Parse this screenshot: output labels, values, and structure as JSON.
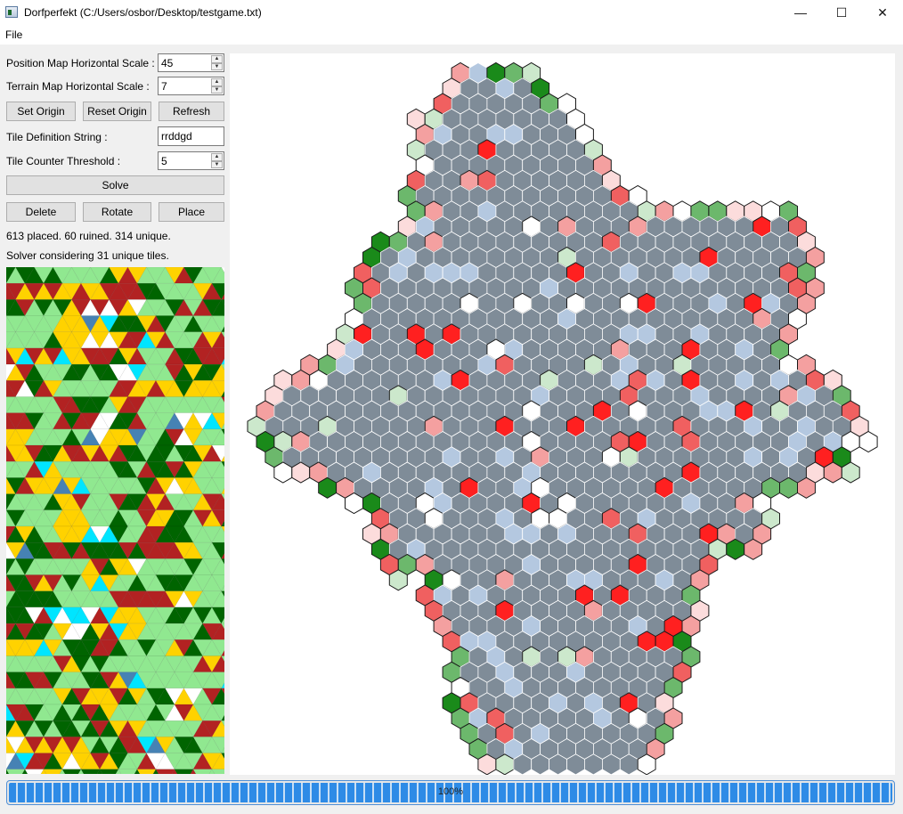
{
  "window": {
    "title": "Dorfperfekt (C:/Users/osbor/Desktop/testgame.txt)",
    "minimize": "—",
    "maximize": "☐",
    "close": "✕"
  },
  "menu": {
    "file": "File"
  },
  "controls": {
    "position_scale_label": "Position Map Horizontal Scale :",
    "position_scale_value": "45",
    "terrain_scale_label": "Terrain Map Horizontal Scale :",
    "terrain_scale_value": "7",
    "set_origin": "Set Origin",
    "reset_origin": "Reset Origin",
    "refresh": "Refresh",
    "tile_def_label": "Tile Definition String :",
    "tile_def_value": "rrddgd",
    "threshold_label": "Tile Counter Threshold :",
    "threshold_value": "5",
    "solve": "Solve",
    "delete": "Delete",
    "rotate": "Rotate",
    "place": "Place"
  },
  "status": {
    "summary": "613 placed. 60 ruined. 314 unique.",
    "solver": "Solver considering 31 unique tiles."
  },
  "progress": {
    "value": 100,
    "label": "100%"
  },
  "colors": {
    "grey": "#7f8c98",
    "light_blue": "#b4c8e0",
    "white": "#ffffff",
    "red": "#ff2020",
    "red_mid": "#f06060",
    "pink": "#f4a0a0",
    "pale_pink": "#fcdcdc",
    "green_dark": "#1a8a1a",
    "green_mid": "#6cb86c",
    "green_pale": "#cce8cc",
    "terrain_green": "#90e890",
    "terrain_dark_green": "#006400",
    "terrain_red": "#b22222",
    "terrain_yellow": "#ffd200",
    "terrain_cyan": "#00e5ff",
    "terrain_blue": "#4682b4",
    "terrain_brown": "#8b5a4a"
  }
}
